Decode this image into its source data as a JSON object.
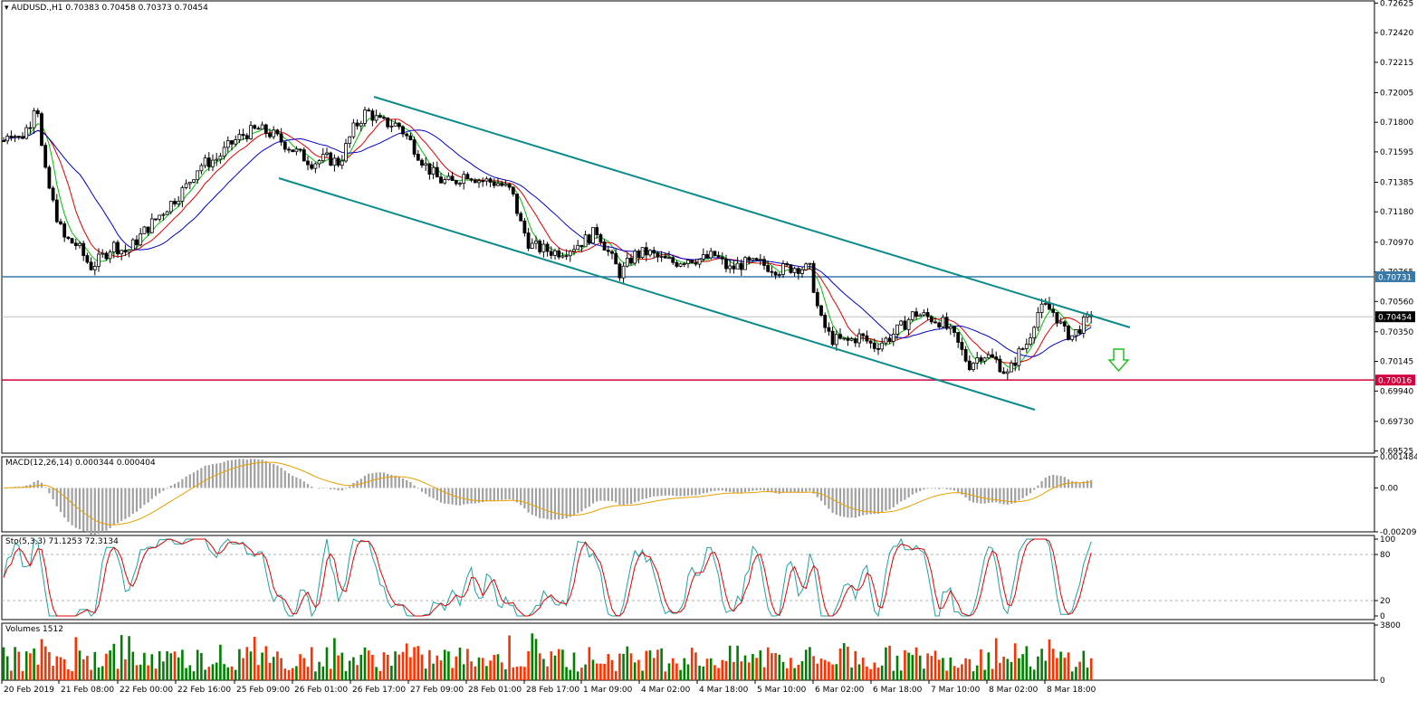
{
  "header": {
    "symbol": "AUDUSD.,H1",
    "ohlc": "0.70383 0.70458 0.70373 0.70454"
  },
  "price_axis": {
    "ticks": [
      "0.72625",
      "0.72420",
      "0.72215",
      "0.72005",
      "0.71800",
      "0.71595",
      "0.71385",
      "0.71180",
      "0.70970",
      "0.70765",
      "0.70560",
      "0.70350",
      "0.70145",
      "0.69940",
      "0.69730",
      "0.69525"
    ],
    "tag_blue": "0.70731",
    "tag_bid": "0.70454",
    "tag_red": "0.70016"
  },
  "time_axis": {
    "labels": [
      "20 Feb 2019",
      "21 Feb 08:00",
      "22 Feb 00:00",
      "22 Feb 16:00",
      "25 Feb 09:00",
      "26 Feb 01:00",
      "26 Feb 17:00",
      "27 Feb 09:00",
      "28 Feb 01:00",
      "28 Feb 17:00",
      "1 Mar 09:00",
      "4 Mar 02:00",
      "4 Mar 18:00",
      "5 Mar 10:00",
      "6 Mar 02:00",
      "6 Mar 18:00",
      "7 Mar 10:00",
      "8 Mar 02:00",
      "8 Mar 18:00"
    ]
  },
  "macd": {
    "label": "MACD(12,26,14) 0.000344 0.000404",
    "ticks": [
      "0.001484",
      "0.00",
      "-0.00209"
    ]
  },
  "stoch": {
    "label": "Sto(5,3,3) 71.1253 72.3134",
    "ticks": [
      "100",
      "80",
      "20",
      "0"
    ]
  },
  "volumes": {
    "label": "Volumes 1512",
    "ticks": [
      "3800",
      "0"
    ]
  },
  "colors": {
    "channel": "#0d8a8a",
    "support_blue": "#3979a8",
    "support_red": "#d1003f",
    "bid_line": "#c0c0c0",
    "ma_fast": "#00c000",
    "ma_mid": "#e00000",
    "ma_slow": "#0000cc",
    "macd_hist": "#a0a0a0",
    "macd_signal": "#e8a000",
    "sto_main": "#20a0a0",
    "sto_signal": "#e00000",
    "vol_up": "#008000",
    "vol_down": "#ff3000",
    "arrow": "#22c022"
  },
  "chart_data": {
    "type": "candlestick",
    "symbol": "AUDUSD.,H1",
    "ylim": [
      0.6951,
      0.7264
    ],
    "last_ohlc": {
      "open": 0.70383,
      "high": 0.70458,
      "low": 0.70373,
      "close": 0.70454
    },
    "horizontal_levels": [
      0.70731,
      0.70016
    ],
    "channel": {
      "upper": {
        "from": {
          "time": "26 Feb 17:00",
          "price": 0.72
        },
        "to": {
          "time": "8 Mar 18:00",
          "price": 0.7043
        }
      },
      "lower": {
        "from": {
          "time": "25 Feb 09:00",
          "price": 0.7143
        },
        "to": {
          "time": "8 Mar 02:00",
          "price": 0.6985
        }
      }
    },
    "price_path": [
      [
        0,
        0.7162
      ],
      [
        10,
        0.7175
      ],
      [
        22,
        0.7168
      ],
      [
        35,
        0.7182
      ],
      [
        40,
        0.72
      ],
      [
        48,
        0.715
      ],
      [
        58,
        0.7125
      ],
      [
        70,
        0.71
      ],
      [
        85,
        0.7095
      ],
      [
        100,
        0.708
      ],
      [
        110,
        0.7085
      ],
      [
        125,
        0.7095
      ],
      [
        140,
        0.709
      ],
      [
        160,
        0.7105
      ],
      [
        175,
        0.7115
      ],
      [
        190,
        0.7125
      ],
      [
        205,
        0.7135
      ],
      [
        220,
        0.715
      ],
      [
        240,
        0.7155
      ],
      [
        255,
        0.7165
      ],
      [
        270,
        0.7172
      ],
      [
        285,
        0.7175
      ],
      [
        300,
        0.7172
      ],
      [
        315,
        0.7165
      ],
      [
        330,
        0.7158
      ],
      [
        345,
        0.7152
      ],
      [
        360,
        0.7155
      ],
      [
        375,
        0.7152
      ],
      [
        390,
        0.7175
      ],
      [
        405,
        0.7188
      ],
      [
        420,
        0.718
      ],
      [
        440,
        0.7178
      ],
      [
        455,
        0.7165
      ],
      [
        470,
        0.715
      ],
      [
        485,
        0.714
      ],
      [
        500,
        0.7138
      ],
      [
        515,
        0.7145
      ],
      [
        530,
        0.714
      ],
      [
        550,
        0.7138
      ],
      [
        565,
        0.7132
      ],
      [
        575,
        0.711
      ],
      [
        585,
        0.7095
      ],
      [
        600,
        0.7092
      ],
      [
        615,
        0.709
      ],
      [
        630,
        0.7093
      ],
      [
        645,
        0.7098
      ],
      [
        660,
        0.7105
      ],
      [
        670,
        0.7092
      ],
      [
        685,
        0.7075
      ],
      [
        700,
        0.7088
      ],
      [
        715,
        0.709
      ],
      [
        730,
        0.7085
      ],
      [
        745,
        0.7083
      ],
      [
        760,
        0.7086
      ],
      [
        775,
        0.7085
      ],
      [
        790,
        0.7088
      ],
      [
        805,
        0.7078
      ],
      [
        820,
        0.7082
      ],
      [
        840,
        0.7082
      ],
      [
        860,
        0.7078
      ],
      [
        880,
        0.708
      ],
      [
        895,
        0.7078
      ],
      [
        905,
        0.7045
      ],
      [
        918,
        0.703
      ],
      [
        935,
        0.7028
      ],
      [
        950,
        0.7032
      ],
      [
        965,
        0.7025
      ],
      [
        980,
        0.703
      ],
      [
        995,
        0.7038
      ],
      [
        1010,
        0.7048
      ],
      [
        1025,
        0.7045
      ],
      [
        1040,
        0.7042
      ],
      [
        1055,
        0.703
      ],
      [
        1070,
        0.7012
      ],
      [
        1085,
        0.702
      ],
      [
        1100,
        0.7015
      ],
      [
        1113,
        0.7005
      ],
      [
        1125,
        0.702
      ],
      [
        1135,
        0.7028
      ],
      [
        1145,
        0.7048
      ],
      [
        1155,
        0.7052
      ],
      [
        1165,
        0.7048
      ],
      [
        1175,
        0.7035
      ],
      [
        1185,
        0.7032
      ],
      [
        1195,
        0.704
      ],
      [
        1205,
        0.7045
      ]
    ],
    "macd": {
      "name": "MACD(12,26,14)",
      "main": 0.000344,
      "signal": 0.000404,
      "ylim": [
        -0.00209,
        0.001484
      ]
    },
    "stochastic": {
      "name": "Sto(5,3,3)",
      "k": 71.1253,
      "d": 72.3134,
      "levels": [
        80,
        20
      ],
      "ylim": [
        0,
        100
      ]
    },
    "volume": {
      "name": "Volumes",
      "last": 1512,
      "ylim": [
        0,
        3800
      ]
    }
  }
}
